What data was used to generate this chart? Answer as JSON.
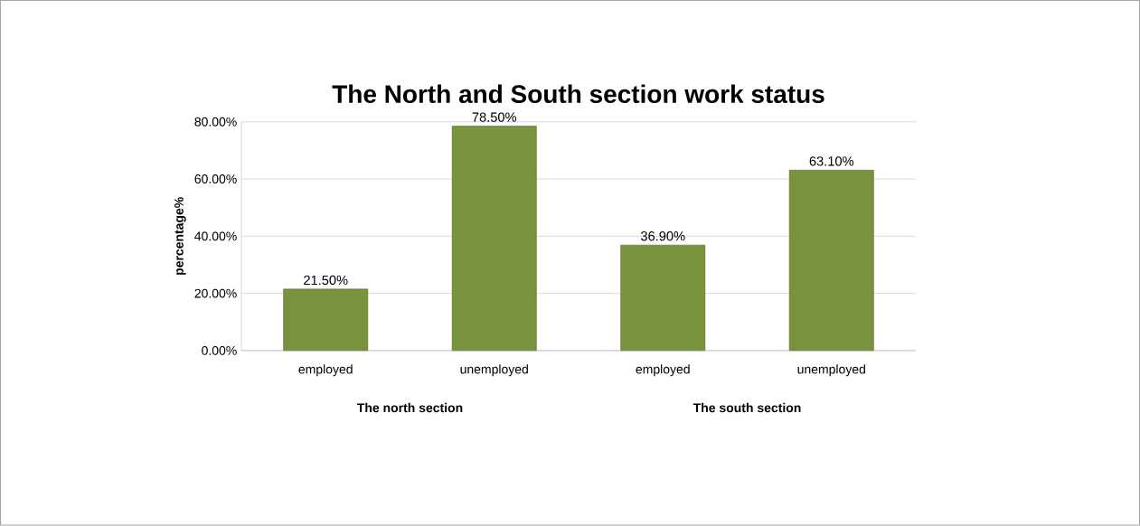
{
  "chart_data": {
    "type": "bar",
    "title": "The North and South section work status",
    "ylabel": "percentage%",
    "categories": [
      "employed",
      "unemployed",
      "employed",
      "unemployed"
    ],
    "values": [
      21.5,
      78.5,
      36.9,
      63.1
    ],
    "value_labels": [
      "21.50%",
      "78.50%",
      "36.90%",
      "63.10%"
    ],
    "color": "#77933c",
    "ylim": [
      0,
      80
    ],
    "yticks": [
      {
        "value": 0,
        "label": "0.00%"
      },
      {
        "value": 20,
        "label": "20.00%"
      },
      {
        "value": 40,
        "label": "40.00%"
      },
      {
        "value": 60,
        "label": "60.00%"
      },
      {
        "value": 80,
        "label": "80.00%"
      }
    ],
    "grid": "y",
    "annotations": [
      "The north section",
      "The south section"
    ]
  }
}
